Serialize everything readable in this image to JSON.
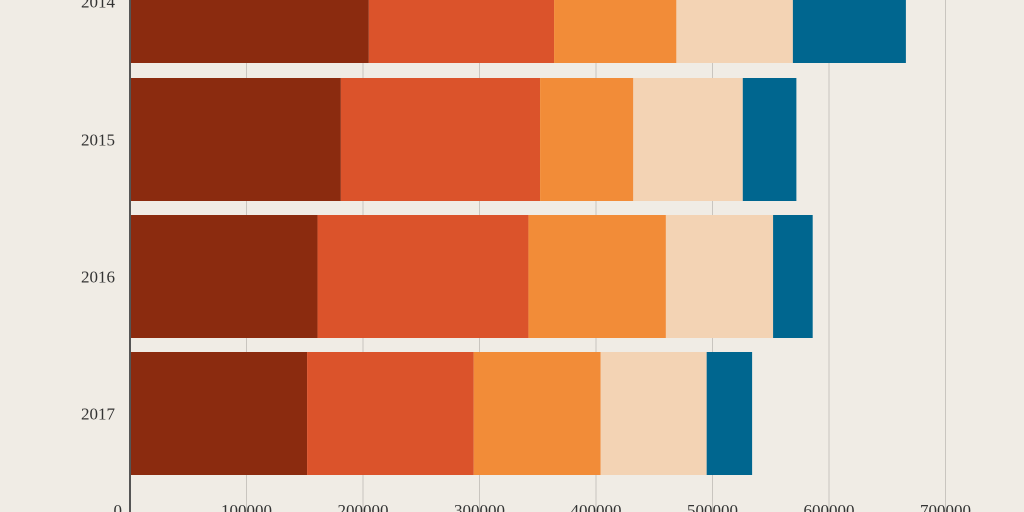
{
  "chart_data": {
    "type": "bar",
    "orientation": "horizontal",
    "stacked": true,
    "title": "",
    "xlabel": "",
    "ylabel": "",
    "categories": [
      "2014",
      "2015",
      "2016",
      "2017"
    ],
    "xlim": [
      0,
      760000
    ],
    "x_ticks": [
      "0",
      "100000",
      "200000",
      "300000",
      "400000",
      "500000",
      "600000",
      "700000"
    ],
    "grid": true,
    "series": [
      {
        "color": "#8b2b0f",
        "values": [
          205000,
          181000,
          161000,
          152000
        ]
      },
      {
        "color": "#db532b",
        "values": [
          159000,
          171000,
          181000,
          143000
        ]
      },
      {
        "color": "#f28c38",
        "values": [
          105000,
          80000,
          118000,
          109000
        ]
      },
      {
        "color": "#f3d3b4",
        "values": [
          100000,
          94000,
          92000,
          91000
        ]
      },
      {
        "color": "#00668f",
        "values": [
          97000,
          46000,
          34000,
          39000
        ]
      }
    ]
  }
}
